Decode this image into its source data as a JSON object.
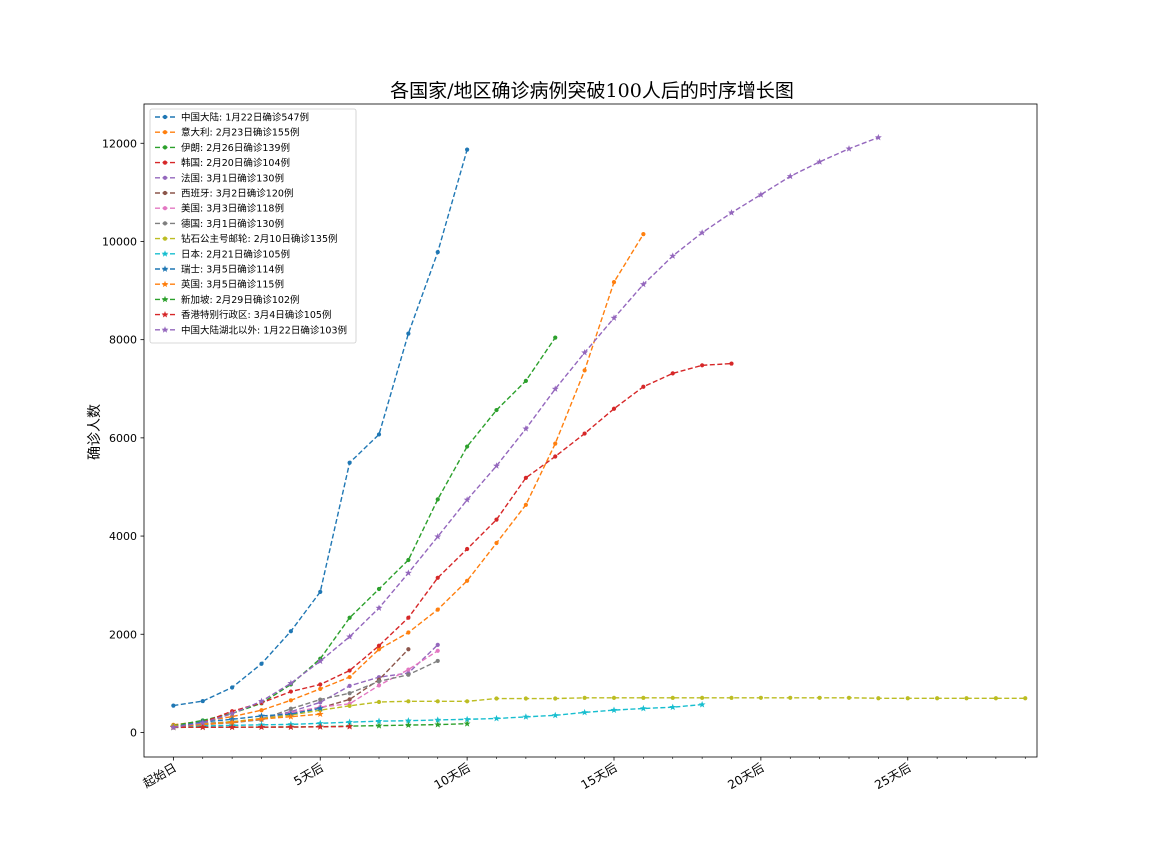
{
  "chart_data": {
    "type": "line",
    "title": "各国家/地区确诊病例突破100人后的时序增长图",
    "xlabel": "",
    "ylabel": "确诊人数",
    "xlim": [
      -1,
      29.4
    ],
    "ylim": [
      -500,
      12800
    ],
    "xticks": [
      0,
      5,
      10,
      15,
      20,
      25
    ],
    "xtick_labels": [
      "起始日",
      "5天后",
      "10天后",
      "15天后",
      "20天后",
      "25天后"
    ],
    "yticks": [
      0,
      2000,
      4000,
      6000,
      8000,
      10000,
      12000
    ],
    "ytick_labels": [
      "0",
      "2000",
      "4000",
      "6000",
      "8000",
      "10000",
      "12000"
    ],
    "grid": false,
    "legend_position": "upper-left",
    "series": [
      {
        "name": "中国大陆: 1月22日确诊547例",
        "color": "#1f77b4",
        "marker": "dot",
        "values": [
          547,
          639,
          916,
          1399,
          2062,
          2863,
          5494,
          6070,
          8124,
          9783,
          11871
        ]
      },
      {
        "name": "意大利: 2月23日确诊155例",
        "color": "#ff7f0e",
        "marker": "dot",
        "values": [
          155,
          229,
          322,
          453,
          655,
          888,
          1128,
          1694,
          2036,
          2502,
          3089,
          3858,
          4636,
          5883,
          7375,
          9172,
          10149
        ]
      },
      {
        "name": "伊朗: 2月26日确诊139例",
        "color": "#2ca02c",
        "marker": "dot",
        "values": [
          139,
          245,
          388,
          593,
          978,
          1501,
          2336,
          2922,
          3513,
          4747,
          5823,
          6566,
          7161,
          8042
        ]
      },
      {
        "name": "韩国: 2月20日确诊104例",
        "color": "#d62728",
        "marker": "dot",
        "values": [
          104,
          204,
          433,
          602,
          833,
          977,
          1261,
          1766,
          2337,
          3150,
          3736,
          4335,
          5186,
          5621,
          6088,
          6593,
          7041,
          7313,
          7478,
          7513
        ]
      },
      {
        "name": "法国: 3月1日确诊130例",
        "color": "#9467bd",
        "marker": "dot",
        "values": [
          130,
          191,
          212,
          285,
          423,
          613,
          949,
          1126,
          1209,
          1784
        ]
      },
      {
        "name": "西班牙: 3月2日确诊120例",
        "color": "#8c564b",
        "marker": "dot",
        "values": [
          120,
          165,
          222,
          259,
          400,
          500,
          673,
          1073,
          1695
        ]
      },
      {
        "name": "美国: 3月3日确诊118例",
        "color": "#e377c2",
        "marker": "dot",
        "values": [
          118,
          149,
          217,
          262,
          402,
          518,
          583,
          959,
          1281,
          1663
        ]
      },
      {
        "name": "德国: 3月1日确诊130例",
        "color": "#7f7f7f",
        "marker": "dot",
        "values": [
          130,
          159,
          196,
          262,
          482,
          670,
          799,
          1040,
          1176,
          1457
        ]
      },
      {
        "name": "钻石公主号邮轮: 2月10日确诊135例",
        "color": "#bcbd22",
        "marker": "dot",
        "values": [
          135,
          174,
          218,
          285,
          355,
          454,
          542,
          621,
          634,
          634,
          634,
          691,
          691,
          691,
          705,
          705,
          705,
          705,
          705,
          705,
          706,
          706,
          706,
          706,
          696,
          696,
          696,
          696,
          696,
          696
        ]
      },
      {
        "name": "日本: 2月21日确诊105例",
        "color": "#17becf",
        "marker": "star",
        "values": [
          105,
          132,
          144,
          156,
          164,
          186,
          210,
          230,
          239,
          254,
          268,
          284,
          317,
          349,
          408,
          455,
          488,
          514,
          568
        ]
      },
      {
        "name": "瑞士: 3月5日确诊114例",
        "color": "#1f77b4",
        "marker": "star",
        "values": [
          114,
          214,
          268,
          337,
          374,
          491
        ]
      },
      {
        "name": "英国: 3月5日确诊115例",
        "color": "#ff7f0e",
        "marker": "star",
        "values": [
          115,
          163,
          206,
          273,
          321,
          373
        ]
      },
      {
        "name": "新加坡: 2月29日确诊102例",
        "color": "#2ca02c",
        "marker": "star",
        "values": [
          102,
          106,
          108,
          110,
          112,
          117,
          130,
          138,
          150,
          160,
          178
        ]
      },
      {
        "name": "香港特别行政区: 3月4日确诊105例",
        "color": "#d62728",
        "marker": "star",
        "values": [
          105,
          105,
          107,
          108,
          109,
          115,
          120
        ]
      },
      {
        "name": "中国大陆湖北以外: 1月22日确诊103例",
        "color": "#9467bd",
        "marker": "star",
        "values": [
          103,
          196,
          383,
          635,
          1002,
          1452,
          1950,
          2534,
          3248,
          3989,
          4738,
          5429,
          6186,
          6996,
          7736,
          8441,
          9126,
          9705,
          10179,
          10585,
          10953,
          11327,
          11622,
          11889,
          12118
        ]
      }
    ]
  }
}
